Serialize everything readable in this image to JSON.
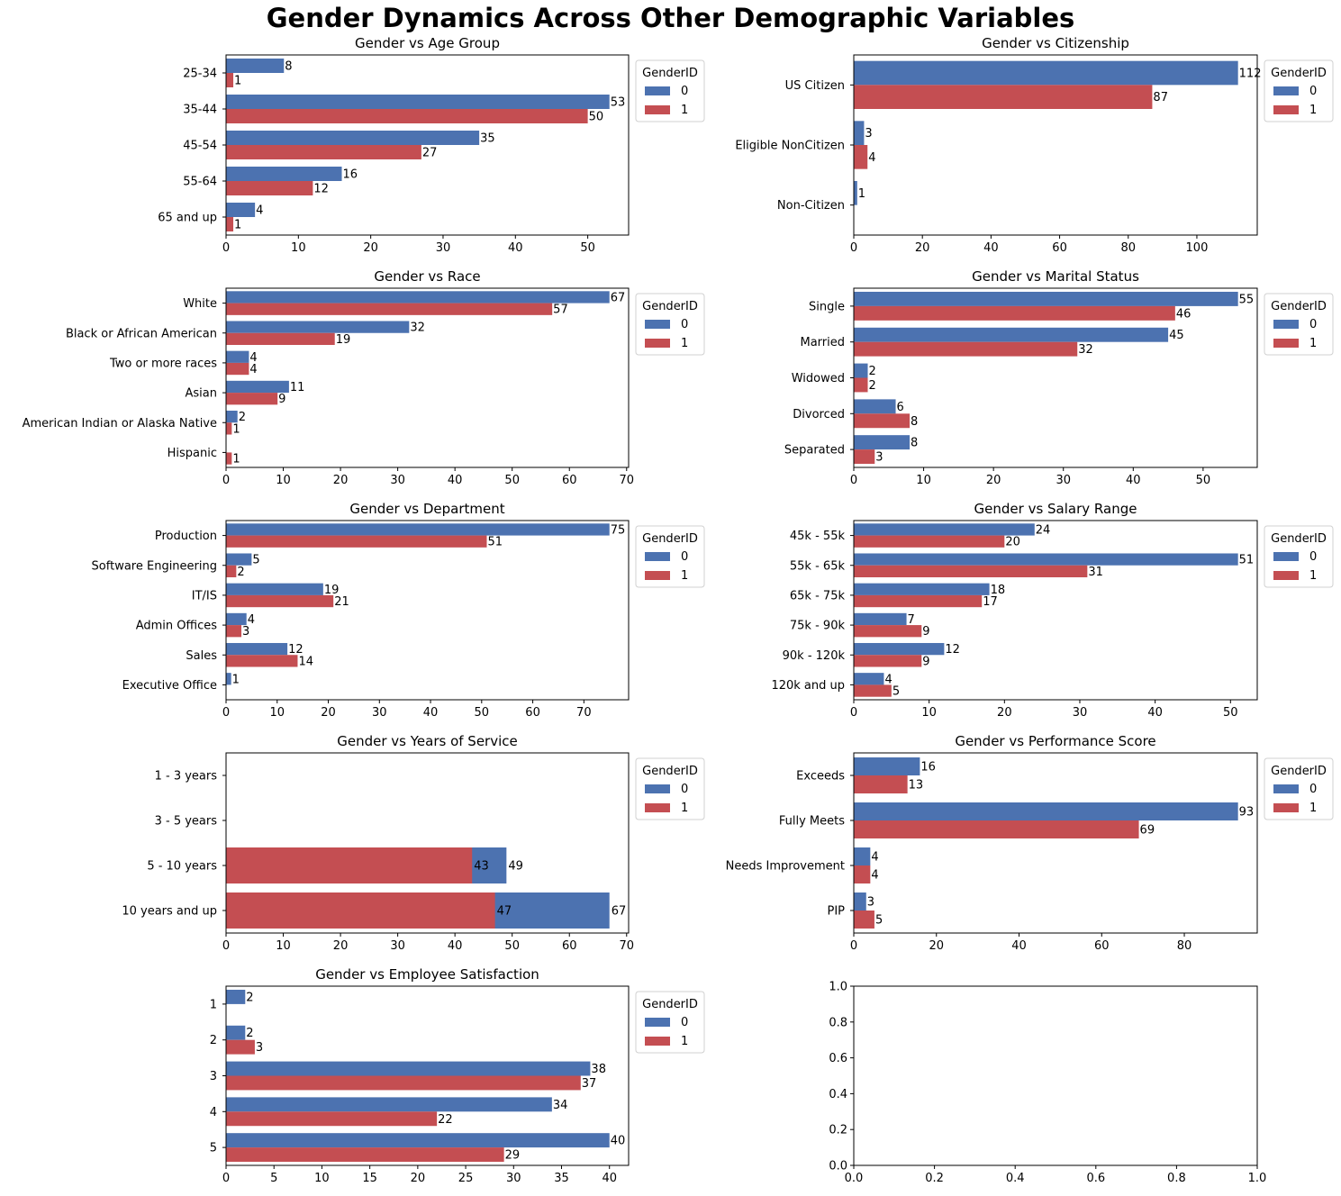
{
  "figure": {
    "title": "Gender Dynamics Across Other Demographic Variables",
    "legend_title": "GenderID",
    "legend_labels": [
      "0",
      "1"
    ],
    "colors": {
      "0": "#4c72b0",
      "1": "#c44e52"
    }
  },
  "chart_data": [
    {
      "type": "bar",
      "orientation": "horizontal",
      "title": "Gender vs Age Group",
      "categories": [
        "25-34",
        "35-44",
        "45-54",
        "55-64",
        "65 and up"
      ],
      "series": [
        {
          "name": "0",
          "values": [
            8,
            53,
            35,
            16,
            4
          ]
        },
        {
          "name": "1",
          "values": [
            1,
            50,
            27,
            12,
            1
          ]
        }
      ],
      "xlim": [
        0,
        55.65
      ],
      "xticks": [
        0,
        10,
        20,
        30,
        40,
        50
      ],
      "legend": "upper right outside"
    },
    {
      "type": "bar",
      "orientation": "horizontal",
      "title": "Gender vs Citizenship",
      "categories": [
        "US Citizen",
        "Eligible NonCitizen",
        "Non-Citizen"
      ],
      "series": [
        {
          "name": "0",
          "values": [
            112,
            3,
            1
          ]
        },
        {
          "name": "1",
          "values": [
            87,
            4,
            0
          ]
        }
      ],
      "xlim": [
        0,
        117.6
      ],
      "xticks": [
        0,
        20,
        40,
        60,
        80,
        100
      ],
      "legend": "upper right outside"
    },
    {
      "type": "bar",
      "orientation": "horizontal",
      "title": "Gender vs Race",
      "categories": [
        "White",
        "Black or African American",
        "Two or more races",
        "Asian",
        "American Indian or Alaska Native",
        "Hispanic"
      ],
      "series": [
        {
          "name": "0",
          "values": [
            67,
            32,
            4,
            11,
            2,
            0
          ]
        },
        {
          "name": "1",
          "values": [
            57,
            19,
            4,
            9,
            1,
            1
          ]
        }
      ],
      "xlim": [
        0,
        70.35
      ],
      "xticks": [
        0,
        10,
        20,
        30,
        40,
        50,
        60,
        70
      ],
      "legend": "upper right outside"
    },
    {
      "type": "bar",
      "orientation": "horizontal",
      "title": "Gender vs Marital Status",
      "categories": [
        "Single",
        "Married",
        "Widowed",
        "Divorced",
        "Separated"
      ],
      "series": [
        {
          "name": "0",
          "values": [
            55,
            45,
            2,
            6,
            8
          ]
        },
        {
          "name": "1",
          "values": [
            46,
            32,
            2,
            8,
            3
          ]
        }
      ],
      "xlim": [
        0,
        57.75
      ],
      "xticks": [
        0,
        10,
        20,
        30,
        40,
        50
      ],
      "legend": "upper right outside"
    },
    {
      "type": "bar",
      "orientation": "horizontal",
      "title": "Gender vs Department",
      "categories": [
        "Production",
        "Software Engineering",
        "IT/IS",
        "Admin Offices",
        "Sales",
        "Executive Office"
      ],
      "series": [
        {
          "name": "0",
          "values": [
            75,
            5,
            19,
            4,
            12,
            1
          ]
        },
        {
          "name": "1",
          "values": [
            51,
            2,
            21,
            3,
            14,
            0
          ]
        }
      ],
      "xlim": [
        0,
        78.75
      ],
      "xticks": [
        0,
        10,
        20,
        30,
        40,
        50,
        60,
        70
      ],
      "legend": "upper right outside"
    },
    {
      "type": "bar",
      "orientation": "horizontal",
      "title": "Gender vs Salary Range",
      "categories": [
        "45k - 55k",
        "55k - 65k",
        "65k - 75k",
        "75k - 90k",
        "90k - 120k",
        "120k and up"
      ],
      "series": [
        {
          "name": "0",
          "values": [
            24,
            51,
            18,
            7,
            12,
            4
          ]
        },
        {
          "name": "1",
          "values": [
            20,
            31,
            17,
            9,
            9,
            5
          ]
        }
      ],
      "xlim": [
        0,
        53.55
      ],
      "xticks": [
        0,
        10,
        20,
        30,
        40,
        50
      ],
      "legend": "upper right outside"
    },
    {
      "type": "bar",
      "orientation": "horizontal",
      "overlap": true,
      "title": "Gender vs Years of Service",
      "categories": [
        "1 - 3 years",
        "3 - 5 years",
        "5 - 10 years",
        "10 years and up"
      ],
      "series": [
        {
          "name": "0",
          "values": [
            0,
            0,
            49,
            67
          ]
        },
        {
          "name": "1",
          "values": [
            0,
            0,
            43,
            47
          ]
        }
      ],
      "xlim": [
        0,
        70.35
      ],
      "xticks": [
        0,
        10,
        20,
        30,
        40,
        50,
        60,
        70
      ],
      "legend": "upper right outside"
    },
    {
      "type": "bar",
      "orientation": "horizontal",
      "title": "Gender vs Performance Score",
      "categories": [
        "Exceeds",
        "Fully Meets",
        "Needs Improvement",
        "PIP"
      ],
      "series": [
        {
          "name": "0",
          "values": [
            16,
            93,
            4,
            3
          ]
        },
        {
          "name": "1",
          "values": [
            13,
            69,
            4,
            5
          ]
        }
      ],
      "xlim": [
        0,
        97.65
      ],
      "xticks": [
        0,
        20,
        40,
        60,
        80
      ],
      "legend": "upper right outside"
    },
    {
      "type": "bar",
      "orientation": "horizontal",
      "title": "Gender vs Employee Satisfaction",
      "categories": [
        "1",
        "2",
        "3",
        "4",
        "5"
      ],
      "series": [
        {
          "name": "0",
          "values": [
            2,
            2,
            38,
            34,
            40
          ]
        },
        {
          "name": "1",
          "values": [
            0,
            3,
            37,
            22,
            29
          ]
        }
      ],
      "xlim": [
        0,
        42
      ],
      "xticks": [
        0,
        5,
        10,
        15,
        20,
        25,
        30,
        35,
        40
      ],
      "legend": "upper right outside"
    },
    {
      "type": "empty",
      "xlim": [
        0,
        1
      ],
      "ylim": [
        0,
        1
      ],
      "xticks": [
        "0.0",
        "0.2",
        "0.4",
        "0.6",
        "0.8",
        "1.0"
      ],
      "yticks": [
        "0.0",
        "0.2",
        "0.4",
        "0.6",
        "0.8",
        "1.0"
      ]
    }
  ]
}
